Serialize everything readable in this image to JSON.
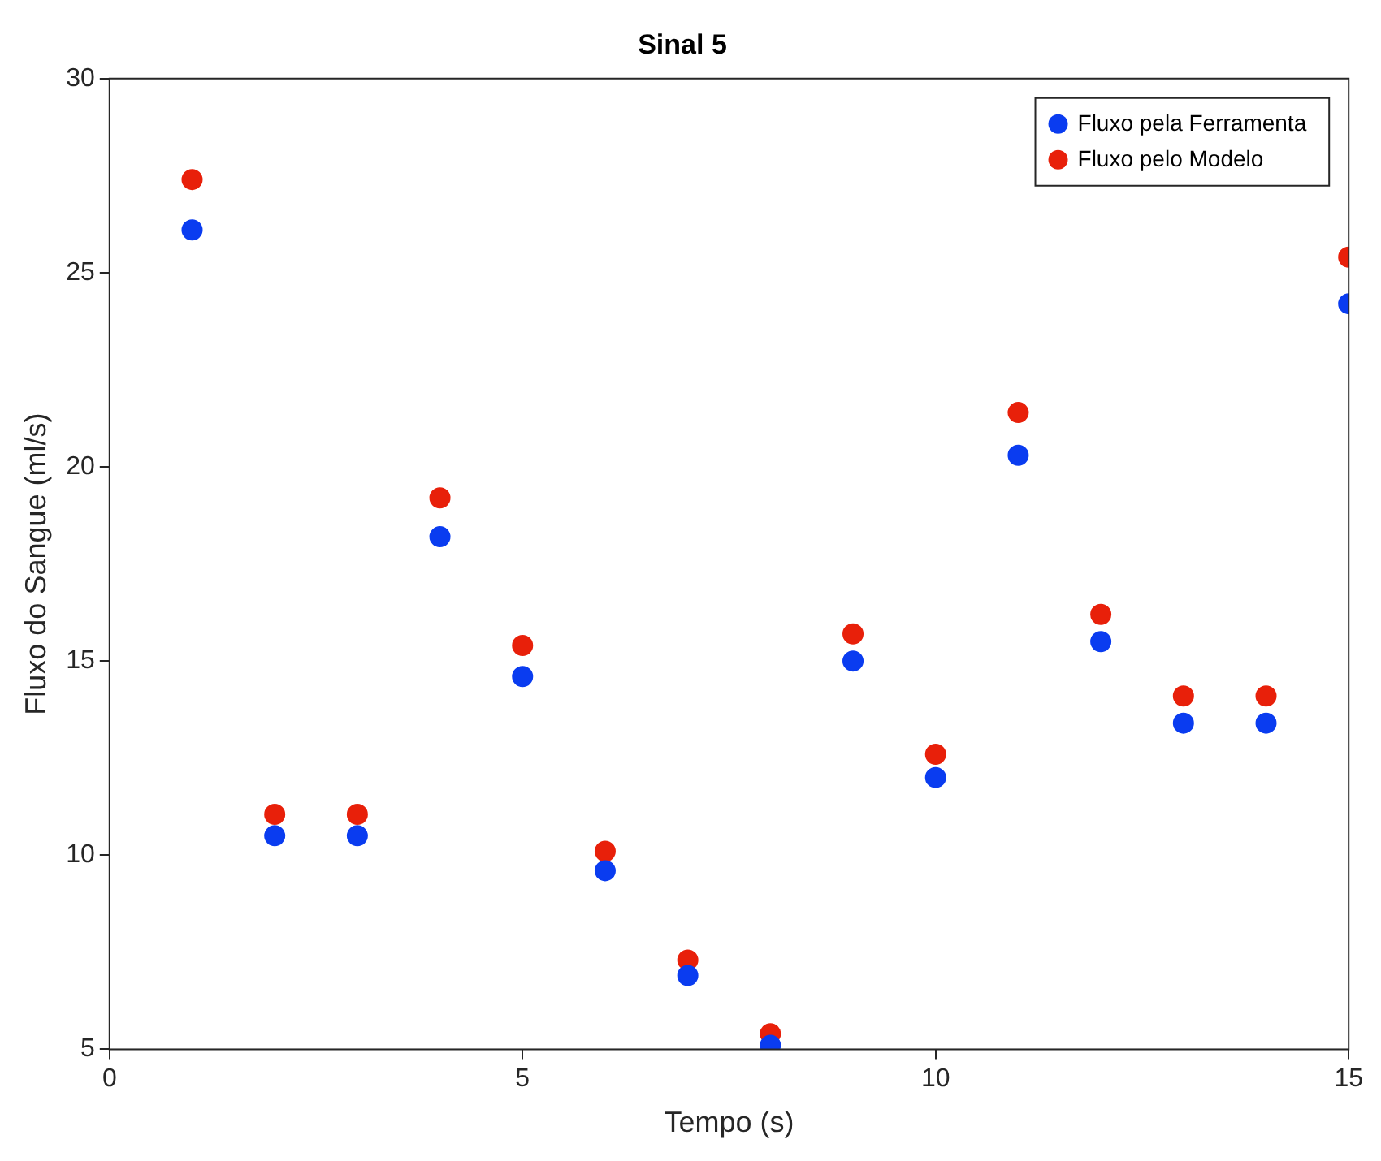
{
  "chart_data": {
    "type": "scatter",
    "title": "Sinal 5",
    "xlabel": "Tempo (s)",
    "ylabel": "Fluxo do Sangue (ml/s)",
    "x": [
      1,
      2,
      3,
      4,
      5,
      6,
      7,
      8,
      9,
      10,
      11,
      12,
      13,
      14,
      15
    ],
    "series": [
      {
        "name": "Fluxo pela Ferramenta",
        "color": "#0a3cf0",
        "values": [
          26.1,
          10.5,
          10.5,
          18.2,
          14.6,
          9.6,
          6.9,
          5.1,
          15.0,
          12.0,
          20.3,
          15.5,
          13.4,
          13.4,
          24.2
        ]
      },
      {
        "name": "Fluxo pelo Modelo",
        "color": "#e8200a",
        "values": [
          27.4,
          11.05,
          11.05,
          19.2,
          15.4,
          10.1,
          7.3,
          5.4,
          15.7,
          12.6,
          21.4,
          16.2,
          14.1,
          14.1,
          25.4
        ]
      }
    ],
    "xlim": [
      0,
      15
    ],
    "xticks": [
      0,
      5,
      10,
      15
    ],
    "ylim": [
      5,
      30
    ],
    "yticks": [
      5,
      10,
      15,
      20,
      25,
      30
    ],
    "grid": false,
    "legend": "top right",
    "marker": "circle"
  }
}
